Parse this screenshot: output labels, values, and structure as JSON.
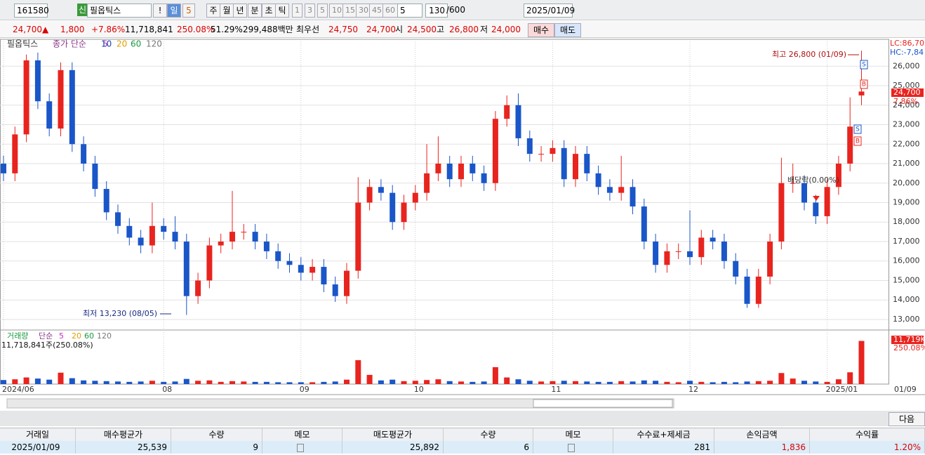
{
  "toolbar": {
    "code": "161580",
    "badge": "신",
    "name": "필옵틱스",
    "alert": "!",
    "period": "일",
    "period_n": "5",
    "tabs": [
      "주",
      "월",
      "년",
      "분",
      "초",
      "틱"
    ],
    "intervals": [
      "1",
      "3",
      "5",
      "10",
      "15",
      "30",
      "45",
      "60"
    ],
    "interval_sel": "5",
    "count": "130",
    "count_max": "/600",
    "date": "2025/01/09"
  },
  "quote": {
    "price": "24,700",
    "arrow": "▲",
    "change": "1,800",
    "change_pct": "+7.86%",
    "volume": "11,718,841",
    "vol_ratio": "250.08%",
    "turnover": "51.29%",
    "amount": "299,488백만",
    "best_label": "최우선",
    "ask": "24,750",
    "bid": "24,700",
    "open_label": "시",
    "open": "24,500",
    "high_label": "고",
    "high": "26,800",
    "low_label": "저",
    "low": "24,000",
    "buy": "매수",
    "sell": "매도"
  },
  "chart_data": {
    "type": "candlestick",
    "title": "필옵틱스",
    "ma_label": "종가 단순",
    "ma_periods": [
      "5",
      "10",
      "20",
      "60",
      "120"
    ],
    "categories": [
      "2024/06",
      null,
      null,
      null,
      null,
      null,
      null,
      null,
      null,
      null,
      null,
      null,
      null,
      null,
      "08",
      null,
      null,
      null,
      null,
      null,
      null,
      null,
      null,
      null,
      null,
      null,
      "09",
      null,
      null,
      null,
      null,
      null,
      null,
      null,
      null,
      null,
      "10",
      null,
      null,
      null,
      null,
      null,
      null,
      null,
      null,
      null,
      null,
      null,
      "11",
      null,
      null,
      null,
      null,
      null,
      null,
      null,
      null,
      null,
      null,
      null,
      "12",
      null,
      null,
      null,
      null,
      null,
      null,
      null,
      null,
      null,
      null,
      null,
      "2025/01",
      null,
      null,
      null
    ],
    "open": [
      21000,
      20500,
      22500,
      26300,
      24200,
      22800,
      25800,
      22000,
      21000,
      19700,
      18500,
      17800,
      17200,
      16800,
      17800,
      17500,
      17000,
      14200,
      15000,
      16800,
      17000,
      17500,
      17500,
      17000,
      16500,
      16000,
      15800,
      15400,
      15700,
      14800,
      14200,
      15500,
      19000,
      19800,
      19500,
      18000,
      19000,
      19500,
      20500,
      21000,
      20200,
      21000,
      20500,
      20000,
      23300,
      24000,
      22300,
      21500,
      21500,
      21800,
      20200,
      21500,
      20500,
      19800,
      19500,
      19800,
      18800,
      17000,
      15800,
      16500,
      16500,
      16200,
      17200,
      17000,
      16000,
      15200,
      13800,
      15200,
      17000,
      20000,
      20000,
      19000,
      18300,
      19800,
      21000,
      24500
    ],
    "high": [
      21400,
      22900,
      26600,
      26700,
      24600,
      26200,
      26200,
      22400,
      21400,
      20100,
      18900,
      18200,
      17600,
      19000,
      18200,
      18300,
      17400,
      15400,
      17200,
      17400,
      19600,
      17900,
      17900,
      17400,
      16900,
      16400,
      16200,
      16100,
      16100,
      15200,
      15900,
      20300,
      20200,
      20200,
      19900,
      19400,
      19900,
      22000,
      22400,
      21400,
      21400,
      21400,
      20900,
      23700,
      24500,
      24600,
      22700,
      21900,
      22200,
      22200,
      21900,
      21900,
      20900,
      20200,
      21400,
      20200,
      19200,
      17400,
      16900,
      16900,
      18600,
      17600,
      17600,
      17400,
      16400,
      15600,
      15600,
      17400,
      21300,
      21000,
      20400,
      19400,
      20200,
      21400,
      24400,
      26800
    ],
    "low": [
      20100,
      20100,
      22100,
      23800,
      22400,
      22400,
      21600,
      20600,
      19300,
      18100,
      17400,
      16800,
      16400,
      16400,
      17100,
      16600,
      13230,
      13800,
      14600,
      16400,
      16600,
      17100,
      16600,
      16100,
      15600,
      15400,
      15000,
      15000,
      14400,
      13900,
      13800,
      15100,
      18600,
      19100,
      17600,
      17600,
      18600,
      19100,
      20100,
      19800,
      19800,
      20100,
      19600,
      19600,
      22900,
      21900,
      21100,
      21100,
      21100,
      19800,
      19800,
      20100,
      19400,
      19100,
      19100,
      18400,
      16600,
      15400,
      15400,
      16100,
      15800,
      15800,
      16600,
      15600,
      14800,
      13600,
      13600,
      14800,
      16600,
      19500,
      18600,
      17900,
      17900,
      19400,
      20600,
      24000
    ],
    "close": [
      20500,
      22500,
      26300,
      24200,
      22800,
      25800,
      22000,
      21000,
      19700,
      18500,
      17800,
      17200,
      16800,
      17800,
      17500,
      17000,
      14200,
      15000,
      16800,
      17000,
      17500,
      17500,
      17000,
      16500,
      16000,
      15800,
      15400,
      15700,
      14800,
      14200,
      15500,
      19000,
      19800,
      19500,
      18000,
      19000,
      19500,
      20500,
      21000,
      20200,
      21000,
      20500,
      20000,
      23300,
      24000,
      22300,
      21500,
      21500,
      21800,
      20200,
      21500,
      20500,
      19800,
      19500,
      19800,
      18800,
      17000,
      15800,
      16500,
      16500,
      16200,
      17200,
      17000,
      16000,
      15200,
      13800,
      15200,
      17000,
      20000,
      20000,
      19000,
      18300,
      19800,
      21000,
      22900,
      24700
    ],
    "ylim": [
      12530,
      27380
    ],
    "yticks": [
      {
        "value": 13000,
        "label": "13,000"
      },
      {
        "value": 14000,
        "label": "14,000"
      },
      {
        "value": 15000,
        "label": "15,000"
      },
      {
        "value": 16000,
        "label": "16,000"
      },
      {
        "value": 17000,
        "label": "17,000"
      },
      {
        "value": 18000,
        "label": "18,000"
      },
      {
        "value": 19000,
        "label": "19,000"
      },
      {
        "value": 20000,
        "label": "20,000"
      },
      {
        "value": 21000,
        "label": "21,000"
      },
      {
        "value": 22000,
        "label": "22,000"
      },
      {
        "value": 23000,
        "label": "23,000"
      },
      {
        "value": 24000,
        "label": "24,000"
      },
      {
        "value": 25000,
        "label": "25,000"
      },
      {
        "value": 26000,
        "label": "26,000"
      }
    ],
    "grid": true,
    "up_color": "#e8241f",
    "down_color": "#1a56c8",
    "lc": "LC:86,70",
    "hc": "HC:-7,84",
    "last_label": "24,700",
    "last_pct": "7.86%",
    "end_date": "01/09",
    "annotations": {
      "high": "최고 26,800 (01/09)",
      "low": "최저 13,230 (08/05)",
      "dividend": "배당락(0.00%)"
    },
    "signals": {
      "sell": "S",
      "buy": "B"
    },
    "volume": {
      "label": "거래량",
      "ma_label": "단순",
      "ma_periods": [
        "5",
        "20",
        "60",
        "120"
      ],
      "info": "11,718,841주(250.08%)",
      "last_label": "11,719K",
      "ratio_label": "250.08%",
      "ylim": [
        0,
        14300000
      ],
      "values": [
        1100000,
        1300000,
        1800000,
        1500000,
        1200000,
        3100000,
        1600000,
        1000000,
        900000,
        800000,
        700000,
        600000,
        700000,
        900000,
        600000,
        700000,
        1400000,
        900000,
        1000000,
        600000,
        800000,
        700000,
        600000,
        600000,
        500000,
        500000,
        500000,
        500000,
        600000,
        700000,
        1200000,
        6500000,
        2500000,
        1000000,
        1200000,
        800000,
        900000,
        1100000,
        1300000,
        800000,
        700000,
        600000,
        700000,
        4600000,
        1800000,
        1300000,
        900000,
        700000,
        800000,
        900000,
        800000,
        700000,
        600000,
        600000,
        800000,
        700000,
        1000000,
        900000,
        600000,
        500000,
        900000,
        600000,
        500000,
        600000,
        500000,
        700000,
        800000,
        900000,
        3000000,
        1500000,
        900000,
        700000,
        600000,
        1300000,
        3200000,
        11718841
      ]
    }
  },
  "footer": {
    "next": "다음"
  },
  "table": {
    "headers": [
      "거래일",
      "매수평균가",
      "수량",
      "메모",
      "매도평균가",
      "수량",
      "메모",
      "수수료+제세금",
      "손익금액",
      "수익률"
    ],
    "rows": [
      [
        "2025/01/09",
        "25,539",
        "9",
        "",
        "25,892",
        "6",
        "",
        "281",
        "1,836",
        "1.20%"
      ]
    ]
  }
}
